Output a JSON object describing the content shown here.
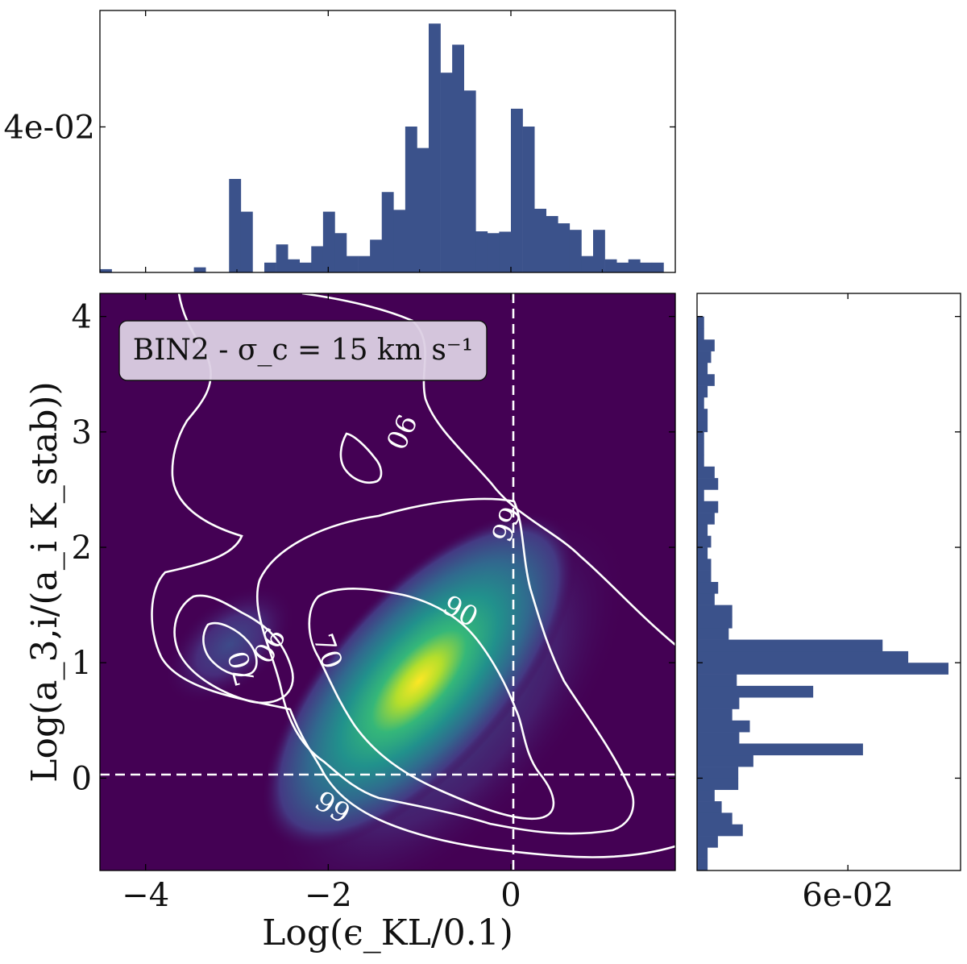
{
  "chart_data": [
    {
      "id": "top_histogram",
      "type": "bar",
      "orientation": "vertical",
      "xlim": [
        -4.5,
        1.8
      ],
      "ylim": [
        0,
        0.072
      ],
      "bin_width": 0.1286,
      "bin_starts": [
        -4.5,
        -4.371,
        -4.243,
        -4.114,
        -3.986,
        -3.857,
        -3.729,
        -3.6,
        -3.471,
        -3.343,
        -3.214,
        -3.086,
        -2.957,
        -2.829,
        -2.7,
        -2.571,
        -2.443,
        -2.314,
        -2.186,
        -2.057,
        -1.929,
        -1.8,
        -1.671,
        -1.543,
        -1.414,
        -1.286,
        -1.157,
        -1.029,
        -0.9,
        -0.771,
        -0.643,
        -0.514,
        -0.386,
        -0.257,
        -0.129,
        0.0,
        0.129,
        0.257,
        0.386,
        0.514,
        0.643,
        0.771,
        0.9,
        1.029,
        1.157,
        1.286,
        1.414,
        1.543,
        1.671
      ],
      "values": [
        0.0009,
        0,
        0,
        0,
        0,
        0,
        0,
        0,
        0.0014,
        0,
        0,
        0.0257,
        0.0167,
        0,
        0.0027,
        0.0077,
        0.0036,
        0.0027,
        0.0072,
        0.0167,
        0.0108,
        0.0045,
        0.0045,
        0.009,
        0.0221,
        0.0172,
        0.0401,
        0.0342,
        0.0684,
        0.0549,
        0.0626,
        0.05,
        0.0113,
        0.0108,
        0.0112,
        0.045,
        0.0401,
        0.0175,
        0.0155,
        0.0135,
        0.0117,
        0.0045,
        0.0117,
        0.0036,
        0.0027,
        0.0036,
        0.0027,
        0.0027,
        0
      ],
      "yticks": [
        0.04
      ],
      "ytick_labels": [
        "4e-02"
      ],
      "color": "#3b528b"
    },
    {
      "id": "right_histogram",
      "type": "bar",
      "orientation": "horizontal",
      "ylim": [
        -0.8,
        4.2
      ],
      "xlim": [
        0,
        0.1
      ],
      "bin_width": 0.1,
      "bin_starts": [
        -0.8,
        -0.7,
        -0.6,
        -0.5,
        -0.4,
        -0.3,
        -0.2,
        -0.1,
        0.0,
        0.1,
        0.2,
        0.3,
        0.4,
        0.5,
        0.6,
        0.7,
        0.8,
        0.9,
        1.0,
        1.1,
        1.2,
        1.3,
        1.4,
        1.5,
        1.6,
        1.7,
        1.8,
        1.9,
        2.0,
        2.1,
        2.2,
        2.3,
        2.4,
        2.5,
        2.6,
        2.7,
        2.8,
        2.9,
        3.0,
        3.1,
        3.2,
        3.3,
        3.4,
        3.5,
        3.6,
        3.7,
        3.8,
        3.9,
        4.0
      ],
      "values": [
        0.0042,
        0.0042,
        0.0083,
        0.0182,
        0.014,
        0.0098,
        0.007,
        0.0164,
        0.0164,
        0.0224,
        0.066,
        0.0168,
        0.021,
        0.014,
        0.0168,
        0.0462,
        0.0158,
        0.1,
        0.084,
        0.0738,
        0.0126,
        0.014,
        0.014,
        0.007,
        0.0084,
        0.0056,
        0.0056,
        0.0042,
        0.0056,
        0.0042,
        0.007,
        0.0084,
        0.0028,
        0.0084,
        0.007,
        0.0028,
        0.0028,
        0.0028,
        0.0042,
        0.0042,
        0.0028,
        0.0042,
        0.007,
        0.0042,
        0.0056,
        0.007,
        0.0028,
        0.0028,
        0
      ],
      "xticks": [
        0.06
      ],
      "xtick_labels": [
        "6e-02"
      ],
      "color": "#3b528b"
    },
    {
      "id": "density_map",
      "type": "heatmap",
      "xlim": [
        -4.5,
        1.8
      ],
      "ylim": [
        -0.8,
        4.2
      ],
      "xticks": [
        -4,
        -2,
        0
      ],
      "xtick_labels": [
        "−4",
        "−2",
        "0"
      ],
      "yticks": [
        0,
        1,
        2,
        3,
        4
      ],
      "ytick_labels": [
        "0",
        "1",
        "2",
        "3",
        "4"
      ],
      "xlabel": "Log(ϵ_KL/0.1)",
      "ylabel": "Log(a_3,i/(a_i K_stab))",
      "annotation": "BIN2 - σ_c = 15 km s⁻¹",
      "reference_lines": {
        "x": 0,
        "y": 0,
        "style": "dashed",
        "color": "#ffffff"
      },
      "colormap": "viridis",
      "peak": {
        "x": -1.15,
        "y": 0.95
      },
      "contour_labels": [
        {
          "text": "99",
          "x": -0.05,
          "y": 2.2,
          "angle": -70
        },
        {
          "text": "90",
          "x": -1.2,
          "y": 3.0,
          "angle": 115
        },
        {
          "text": "90",
          "x": -0.55,
          "y": 1.45,
          "angle": 28
        },
        {
          "text": "90",
          "x": -2.65,
          "y": 1.15,
          "angle": 120
        },
        {
          "text": "70",
          "x": -2.0,
          "y": 1.1,
          "angle": 70
        },
        {
          "text": "70",
          "x": -2.95,
          "y": 0.95,
          "angle": -105
        },
        {
          "text": "99",
          "x": -1.95,
          "y": -0.25,
          "angle": 32
        }
      ]
    }
  ]
}
